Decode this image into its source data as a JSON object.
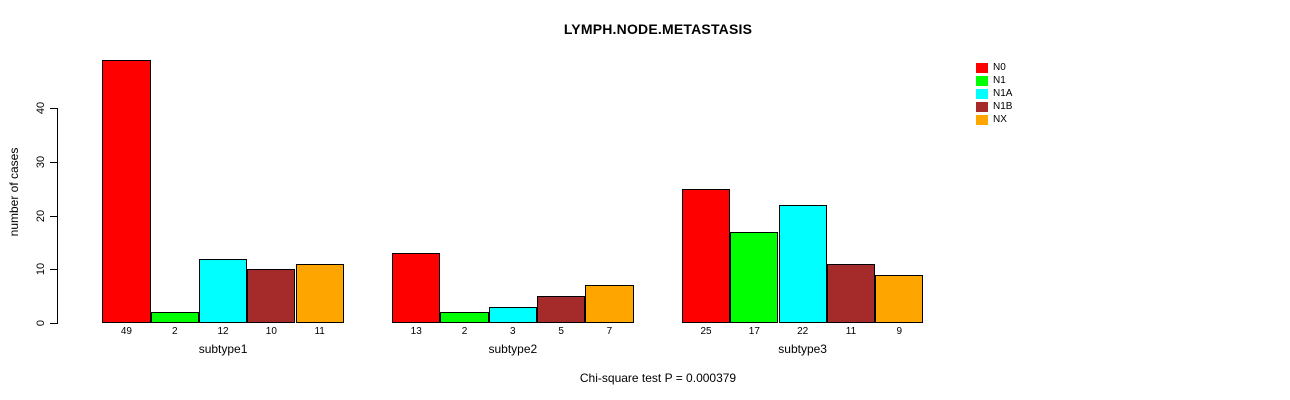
{
  "chart_data": {
    "type": "bar",
    "grouped": true,
    "title": "LYMPH.NODE.METASTASIS",
    "ylabel": "number of cases",
    "xlabel": "",
    "categories": [
      "subtype1",
      "subtype2",
      "subtype3"
    ],
    "series": [
      {
        "name": "N0",
        "color": "#ff0000",
        "values": [
          49,
          13,
          25
        ]
      },
      {
        "name": "N1",
        "color": "#00ff00",
        "values": [
          2,
          2,
          17
        ]
      },
      {
        "name": "N1A",
        "color": "#00ffff",
        "values": [
          12,
          3,
          22
        ]
      },
      {
        "name": "N1B",
        "color": "#a52a2a",
        "values": [
          10,
          5,
          11
        ]
      },
      {
        "name": "NX",
        "color": "#ffa500",
        "values": [
          11,
          7,
          9
        ]
      }
    ],
    "yticks": [
      0,
      10,
      20,
      30,
      40
    ],
    "ylim": [
      0,
      50
    ],
    "grid": false,
    "bar_value_labels_shown": true,
    "legend_position": "top-right",
    "annotation": "Chi-square test P = 0.000379"
  }
}
